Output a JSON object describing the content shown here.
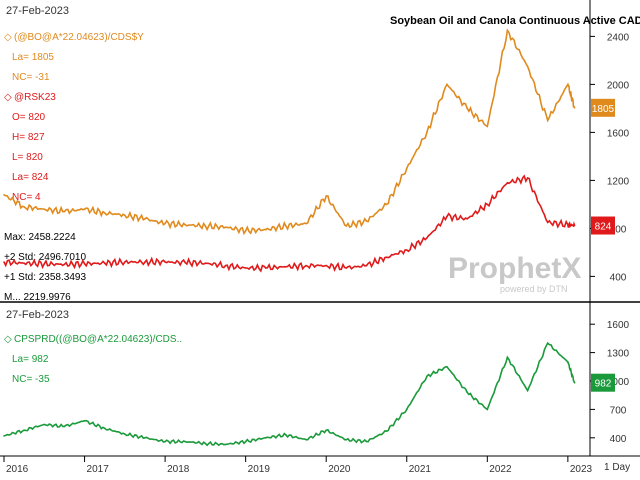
{
  "chart_data": [
    {
      "type": "line",
      "title": "Soybean Oil and Canola Continuous Active CAD/mt",
      "xlabel": "",
      "ylabel": "",
      "x_ticks": [
        "2016",
        "2017",
        "2018",
        "2019",
        "2020",
        "2021",
        "2022",
        "2023"
      ],
      "y_ticks": [
        400,
        800,
        1200,
        1600,
        2000,
        2400
      ],
      "ylim": [
        220,
        2620
      ],
      "grid": false,
      "date_label": "27-Feb-2023",
      "x": [
        "2016-01",
        "2016-04",
        "2016-07",
        "2016-10",
        "2017-01",
        "2017-04",
        "2017-07",
        "2017-10",
        "2018-01",
        "2018-04",
        "2018-07",
        "2018-10",
        "2019-01",
        "2019-04",
        "2019-07",
        "2019-10",
        "2020-01",
        "2020-04",
        "2020-07",
        "2020-10",
        "2021-01",
        "2021-04",
        "2021-07",
        "2021-10",
        "2022-01",
        "2022-04",
        "2022-07",
        "2022-10",
        "2023-01",
        "2023-02"
      ],
      "series": [
        {
          "name": "(@BO@A*22.04623)/CDS$Y",
          "color": "#e08a1e",
          "legend_lines": [
            "(@BO@A*22.04623)/CDS$Y",
            "La= 1805",
            "NC= -31"
          ],
          "values": [
            1080,
            980,
            960,
            940,
            960,
            930,
            910,
            880,
            840,
            830,
            820,
            810,
            780,
            790,
            820,
            840,
            1070,
            820,
            860,
            1000,
            1300,
            1600,
            2000,
            1800,
            1650,
            2450,
            2150,
            1700,
            2000,
            1805
          ]
        },
        {
          "name": "@RSK23",
          "color": "#e01a1a",
          "legend_lines": [
            "@RSK23",
            "O= 820",
            "H= 827",
            "L= 820",
            "La= 824",
            "NC= 4"
          ],
          "values": [
            520,
            510,
            505,
            500,
            505,
            510,
            520,
            520,
            520,
            515,
            510,
            490,
            470,
            470,
            480,
            490,
            490,
            470,
            490,
            560,
            620,
            720,
            900,
            880,
            1000,
            1180,
            1220,
            850,
            830,
            824
          ]
        }
      ],
      "value_tags": [
        {
          "text": "1805",
          "color": "#e08a1e",
          "value": 1805
        },
        {
          "text": "824",
          "color": "#e01a1a",
          "value": 824
        }
      ],
      "stats": [
        "Max: 2458.2224",
        "+2 Std: 2496.7010",
        "+1 Std: 2358.3493",
        "M... 2219.9976"
      ],
      "watermark": "ProphetX",
      "watermark_sub": "powered by DTN"
    },
    {
      "type": "line",
      "title": "",
      "xlabel": "",
      "ylabel": "",
      "x_ticks": [
        "2016",
        "2017",
        "2018",
        "2019",
        "2020",
        "2021",
        "2022",
        "2023"
      ],
      "y_ticks": [
        400,
        700,
        1000,
        1300,
        1600
      ],
      "ylim": [
        250,
        1750
      ],
      "grid": false,
      "date_label": "27-Feb-2023",
      "x": [
        "2016-01",
        "2016-04",
        "2016-07",
        "2016-10",
        "2017-01",
        "2017-04",
        "2017-07",
        "2017-10",
        "2018-01",
        "2018-04",
        "2018-07",
        "2018-10",
        "2019-01",
        "2019-04",
        "2019-07",
        "2019-10",
        "2020-01",
        "2020-04",
        "2020-07",
        "2020-10",
        "2021-01",
        "2021-04",
        "2021-07",
        "2021-10",
        "2022-01",
        "2022-04",
        "2022-07",
        "2022-10",
        "2023-01",
        "2023-02"
      ],
      "series": [
        {
          "name": "CPSPRD((@BO@A*22.04623)/CDS..",
          "color": "#1a9a3a",
          "legend_lines": [
            "CPSPRD((@BO@A*22.04623)/CDS..",
            "La= 982",
            "NC= -35"
          ],
          "values": [
            420,
            480,
            540,
            520,
            580,
            500,
            440,
            400,
            360,
            360,
            340,
            330,
            360,
            400,
            430,
            380,
            480,
            380,
            360,
            470,
            700,
            1050,
            1150,
            880,
            700,
            1250,
            900,
            1400,
            1200,
            982
          ]
        }
      ],
      "value_tags": [
        {
          "text": "982",
          "color": "#1a9a3a",
          "value": 982
        }
      ]
    }
  ],
  "x_axis_extra": "1 Day"
}
